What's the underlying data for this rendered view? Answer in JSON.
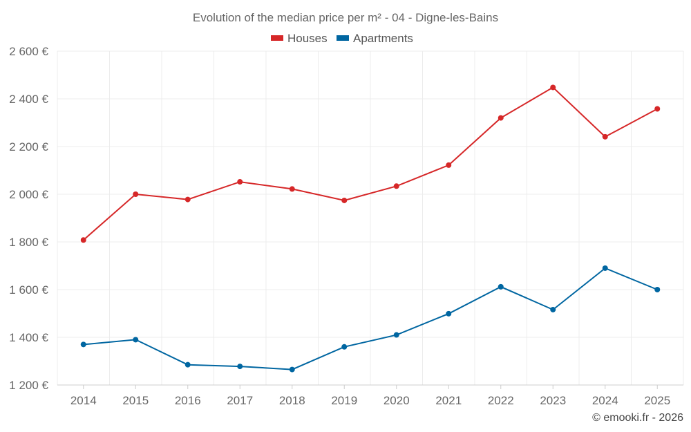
{
  "chart_data": {
    "type": "line",
    "title": "Evolution of the median price per m² - 04 - Digne-les-Bains",
    "categories": [
      "2014",
      "2015",
      "2016",
      "2017",
      "2018",
      "2019",
      "2020",
      "2021",
      "2022",
      "2023",
      "2024",
      "2025"
    ],
    "series": [
      {
        "name": "Houses",
        "color": "#d62728",
        "values": [
          1808,
          2000,
          1978,
          2052,
          2022,
          1974,
          2034,
          2122,
          2320,
          2448,
          2241,
          2358
        ]
      },
      {
        "name": "Apartments",
        "color": "#0066a1",
        "values": [
          1370,
          1390,
          1285,
          1278,
          1265,
          1360,
          1410,
          1499,
          1612,
          1516,
          1690,
          1600
        ]
      }
    ],
    "ylim": [
      1200,
      2600
    ],
    "yticks": [
      1200,
      1400,
      1600,
      1800,
      2000,
      2200,
      2400,
      2600
    ],
    "ytick_labels": [
      "1 200 €",
      "1 400 €",
      "1 600 €",
      "1 800 €",
      "2 000 €",
      "2 200 €",
      "2 400 €",
      "2 600 €"
    ],
    "xlabel": "",
    "ylabel": "",
    "grid": true,
    "legend_position": "top-center"
  },
  "credit": "© emooki.fr - 2026"
}
